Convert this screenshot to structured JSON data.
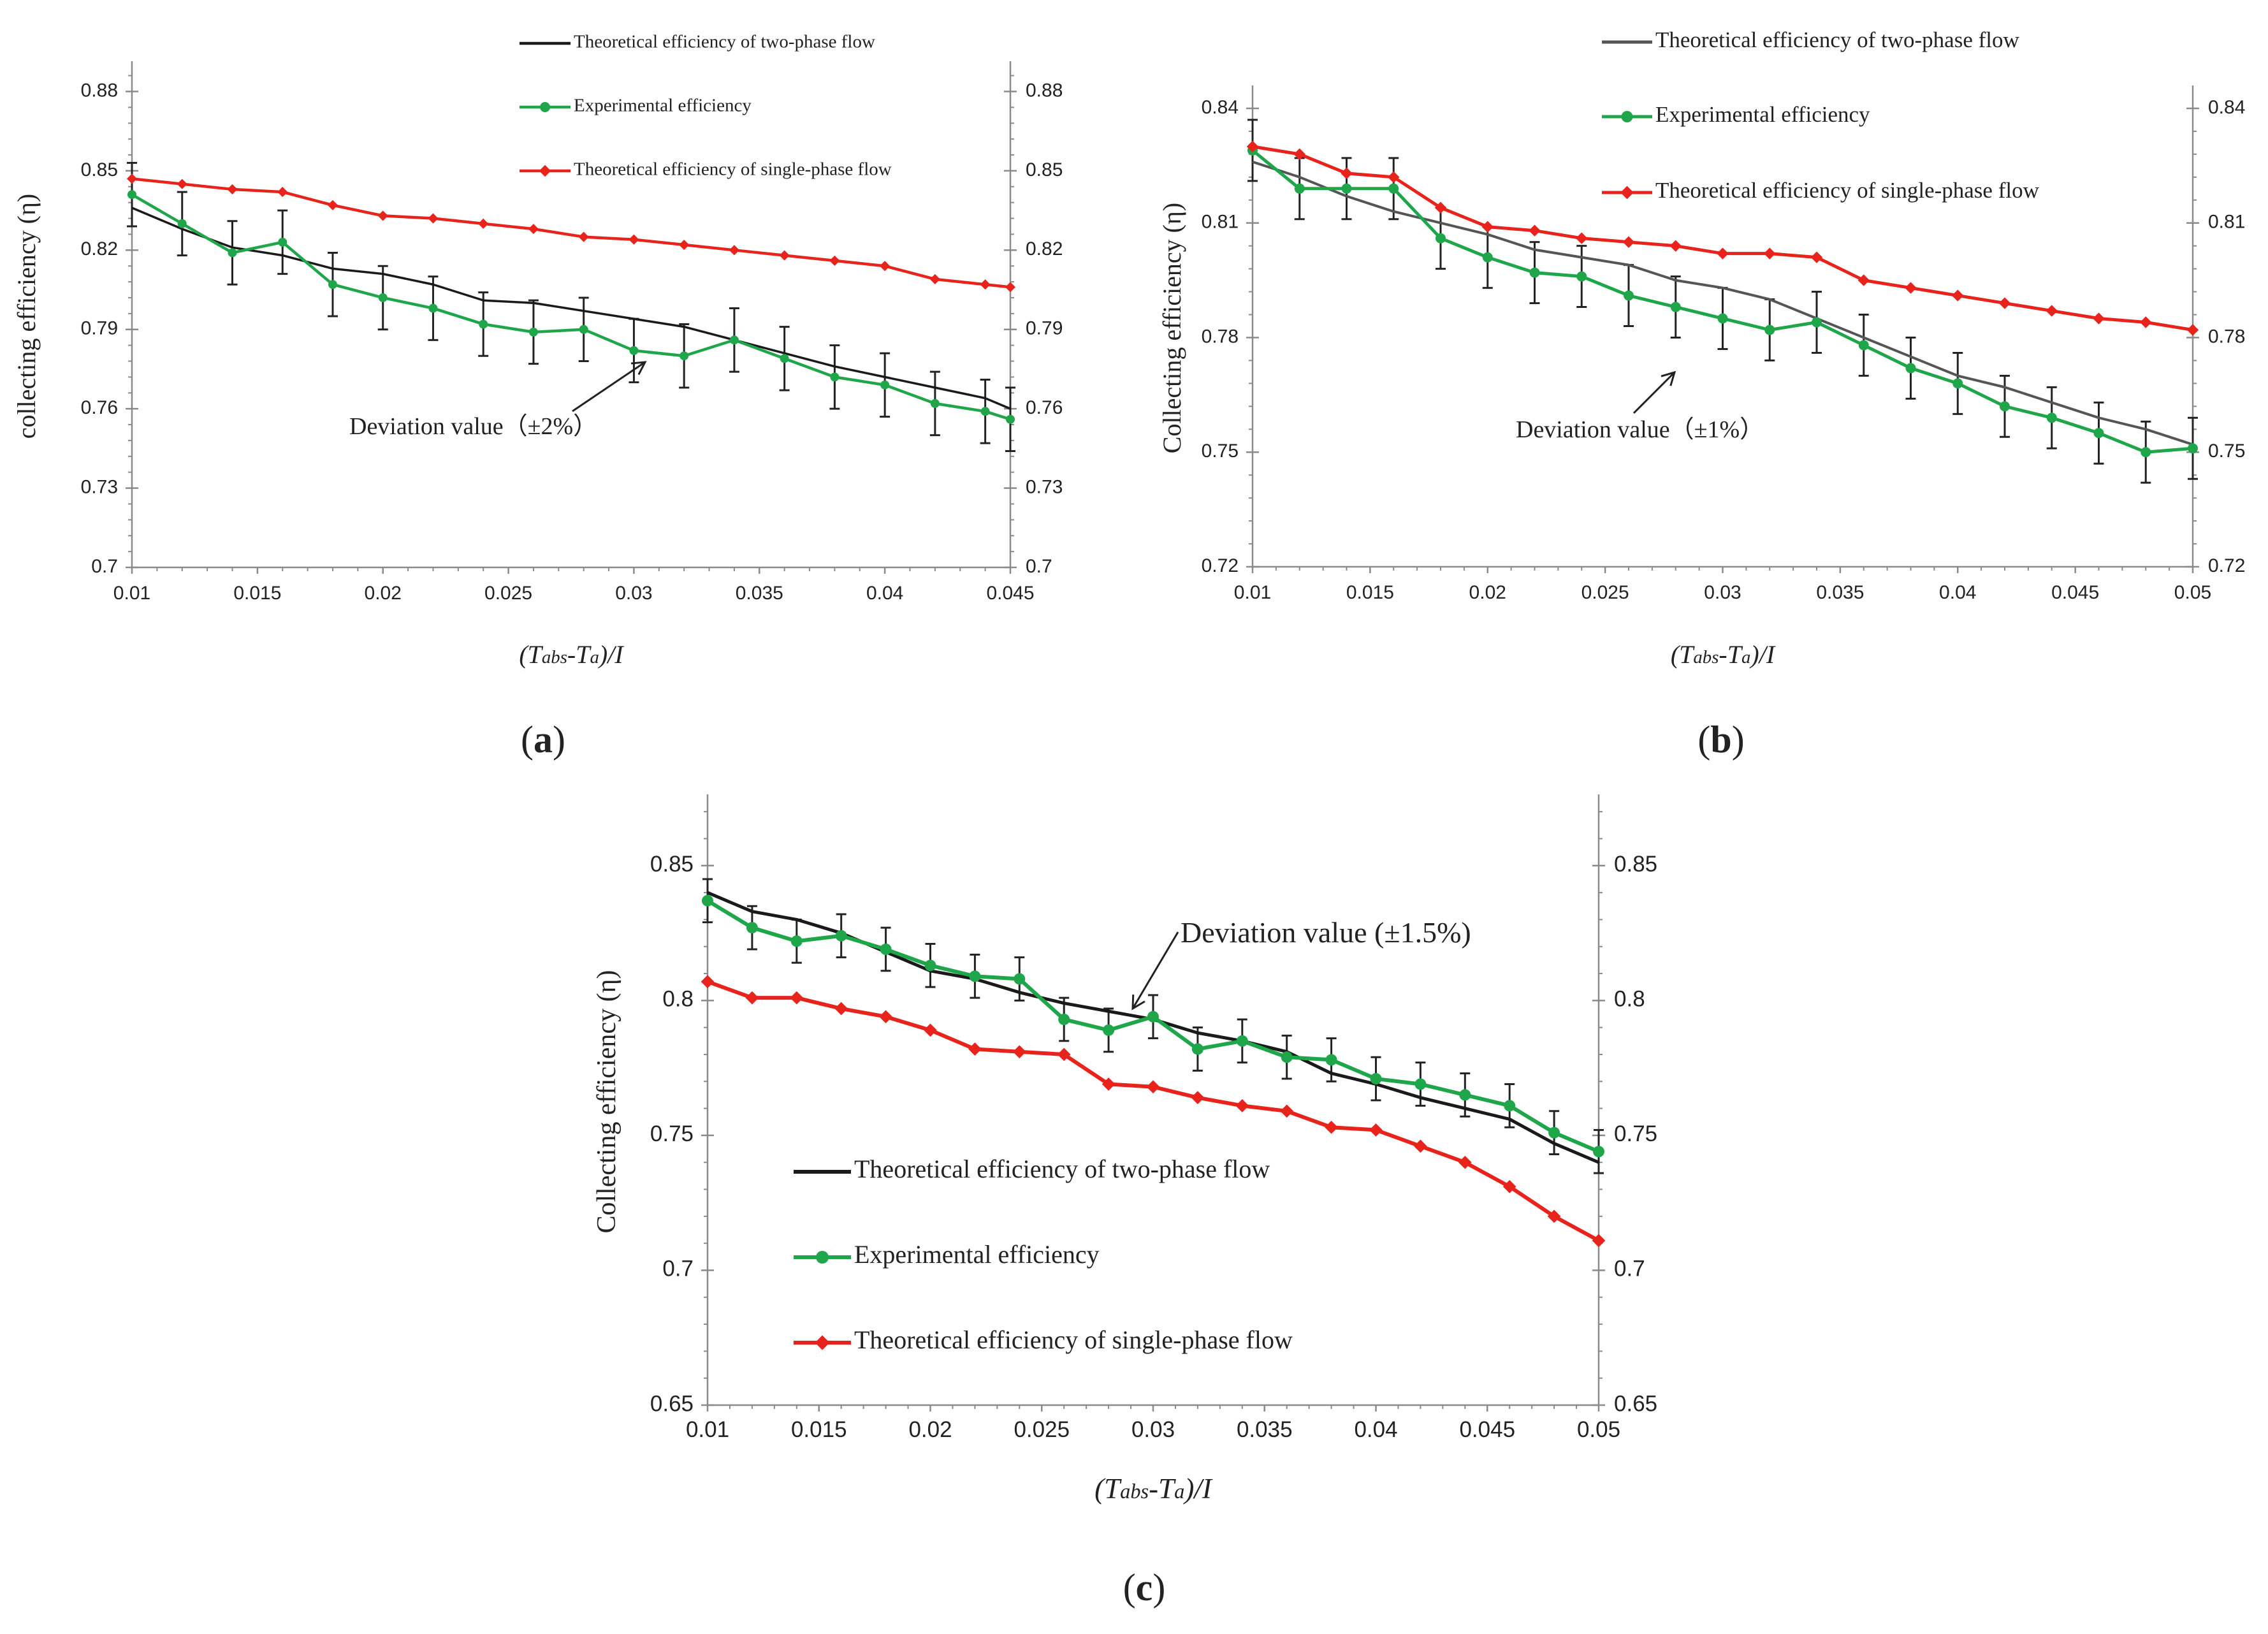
{
  "chart_data": [
    {
      "type": "line",
      "panel_label": "(a)",
      "xlabel": "(Tabs-Ta)/I",
      "xlabel_parts": [
        "(T",
        "abs",
        "-T",
        "a",
        ")/I"
      ],
      "ylabel": "collecting efficiency (η)",
      "xlim": [
        0.01,
        0.045
      ],
      "ylim": [
        0.7,
        0.89
      ],
      "xticks": [
        "0.01",
        "0.015",
        "0.02",
        "0.025",
        "0.03",
        "0.035",
        "0.04",
        "0.045"
      ],
      "yticks": [
        "0.7",
        "0.73",
        "0.76",
        "0.79",
        "0.82",
        "0.85",
        "0.88"
      ],
      "annotation": "Deviation value（±2%）",
      "x": [
        0.01,
        0.012,
        0.014,
        0.016,
        0.018,
        0.02,
        0.022,
        0.024,
        0.026,
        0.028,
        0.03,
        0.032,
        0.034,
        0.036,
        0.038,
        0.04,
        0.042,
        0.044,
        0.045
      ],
      "series": [
        {
          "name": "Theoretical efficiency of two-phase flow",
          "color": "#1a1a1a",
          "marker": "none",
          "values": [
            0.836,
            0.828,
            0.821,
            0.818,
            0.813,
            0.811,
            0.807,
            0.801,
            0.8,
            0.797,
            0.794,
            0.791,
            0.786,
            0.781,
            0.776,
            0.772,
            0.768,
            0.764,
            0.76
          ]
        },
        {
          "name": "Experimental efficiency",
          "color": "#1fa64a",
          "marker": "circle",
          "values": [
            0.841,
            0.83,
            0.819,
            0.823,
            0.807,
            0.802,
            0.798,
            0.792,
            0.789,
            0.79,
            0.782,
            0.78,
            0.786,
            0.779,
            0.772,
            0.769,
            0.762,
            0.759,
            0.756
          ],
          "error": [
            0.012,
            0.012,
            0.012,
            0.012,
            0.012,
            0.012,
            0.012,
            0.012,
            0.012,
            0.012,
            0.012,
            0.012,
            0.012,
            0.012,
            0.012,
            0.012,
            0.012,
            0.012,
            0.012
          ]
        },
        {
          "name": "Theoretical efficiency of single-phase flow",
          "color": "#e8231c",
          "marker": "diamond",
          "values": [
            0.847,
            0.845,
            0.843,
            0.842,
            0.837,
            0.833,
            0.832,
            0.83,
            0.828,
            0.825,
            0.824,
            0.822,
            0.82,
            0.818,
            0.816,
            0.814,
            0.809,
            0.807,
            0.806
          ]
        }
      ]
    },
    {
      "type": "line",
      "panel_label": "(b)",
      "xlabel": "(Tabs-Ta)/I",
      "xlabel_parts": [
        "(T",
        "abs",
        "-T",
        "a",
        ")/I"
      ],
      "ylabel": "Collecting efficiency (η)",
      "xlim": [
        0.01,
        0.05
      ],
      "ylim": [
        0.72,
        0.845
      ],
      "xticks": [
        "0.01",
        "0.015",
        "0.02",
        "0.025",
        "0.03",
        "0.035",
        "0.04",
        "0.045",
        "0.05"
      ],
      "yticks": [
        "0.72",
        "0.75",
        "0.78",
        "0.81",
        "0.84"
      ],
      "annotation": "Deviation value（±1%）",
      "x": [
        0.01,
        0.012,
        0.014,
        0.016,
        0.018,
        0.02,
        0.022,
        0.024,
        0.026,
        0.028,
        0.03,
        0.032,
        0.034,
        0.036,
        0.038,
        0.04,
        0.042,
        0.044,
        0.046,
        0.048,
        0.05
      ],
      "series": [
        {
          "name": "Theoretical efficiency of two-phase flow",
          "color": "#555555",
          "marker": "none",
          "values": [
            0.826,
            0.822,
            0.817,
            0.813,
            0.81,
            0.807,
            0.803,
            0.801,
            0.799,
            0.795,
            0.793,
            0.79,
            0.785,
            0.78,
            0.775,
            0.77,
            0.767,
            0.763,
            0.759,
            0.756,
            0.752
          ]
        },
        {
          "name": "Experimental efficiency",
          "color": "#1fa64a",
          "marker": "circle",
          "values": [
            0.829,
            0.819,
            0.819,
            0.819,
            0.806,
            0.801,
            0.797,
            0.796,
            0.791,
            0.788,
            0.785,
            0.782,
            0.784,
            0.778,
            0.772,
            0.768,
            0.762,
            0.759,
            0.755,
            0.75,
            0.751
          ],
          "error": [
            0.008,
            0.008,
            0.008,
            0.008,
            0.008,
            0.008,
            0.008,
            0.008,
            0.008,
            0.008,
            0.008,
            0.008,
            0.008,
            0.008,
            0.008,
            0.008,
            0.008,
            0.008,
            0.008,
            0.008,
            0.008
          ]
        },
        {
          "name": "Theoretical efficiency of single-phase flow",
          "color": "#e8231c",
          "marker": "diamond",
          "values": [
            0.83,
            0.828,
            0.823,
            0.822,
            0.814,
            0.809,
            0.808,
            0.806,
            0.805,
            0.804,
            0.802,
            0.802,
            0.801,
            0.795,
            0.793,
            0.791,
            0.789,
            0.787,
            0.785,
            0.784,
            0.782
          ]
        }
      ]
    },
    {
      "type": "line",
      "panel_label": "(c)",
      "xlabel": "(Tabs-Ta)/I",
      "xlabel_parts": [
        "(T",
        "abs",
        "-T",
        "a",
        ")/I"
      ],
      "ylabel": "Collecting efficiency (η)",
      "xlim": [
        0.01,
        0.05
      ],
      "ylim": [
        0.65,
        0.875
      ],
      "xticks": [
        "0.01",
        "0.015",
        "0.02",
        "0.025",
        "0.03",
        "0.035",
        "0.04",
        "0.045",
        "0.05"
      ],
      "yticks": [
        "0.65",
        "0.7",
        "0.75",
        "0.8",
        "0.85"
      ],
      "annotation": "Deviation value (±1.5%)",
      "x": [
        0.01,
        0.012,
        0.014,
        0.016,
        0.018,
        0.02,
        0.022,
        0.024,
        0.026,
        0.028,
        0.03,
        0.032,
        0.034,
        0.036,
        0.038,
        0.04,
        0.042,
        0.044,
        0.046,
        0.048,
        0.05
      ],
      "series": [
        {
          "name": "Theoretical efficiency of two-phase flow",
          "color": "#1a1a1a",
          "marker": "none",
          "values": [
            0.84,
            0.833,
            0.83,
            0.825,
            0.818,
            0.811,
            0.808,
            0.803,
            0.799,
            0.796,
            0.793,
            0.788,
            0.785,
            0.781,
            0.773,
            0.769,
            0.764,
            0.76,
            0.756,
            0.747,
            0.74
          ]
        },
        {
          "name": "Experimental efficiency",
          "color": "#1fa64a",
          "marker": "circle",
          "values": [
            0.837,
            0.827,
            0.822,
            0.824,
            0.819,
            0.813,
            0.809,
            0.808,
            0.793,
            0.789,
            0.794,
            0.782,
            0.785,
            0.779,
            0.778,
            0.771,
            0.769,
            0.765,
            0.761,
            0.751,
            0.744
          ],
          "error": [
            0.008,
            0.008,
            0.008,
            0.008,
            0.008,
            0.008,
            0.008,
            0.008,
            0.008,
            0.008,
            0.008,
            0.008,
            0.008,
            0.008,
            0.008,
            0.008,
            0.008,
            0.008,
            0.008,
            0.008,
            0.008
          ]
        },
        {
          "name": "Theoretical efficiency of single-phase flow",
          "color": "#e8231c",
          "marker": "diamond",
          "values": [
            0.807,
            0.801,
            0.801,
            0.797,
            0.794,
            0.789,
            0.782,
            0.781,
            0.78,
            0.769,
            0.768,
            0.764,
            0.761,
            0.759,
            0.753,
            0.752,
            0.746,
            0.74,
            0.731,
            0.72,
            0.711
          ]
        }
      ]
    }
  ]
}
